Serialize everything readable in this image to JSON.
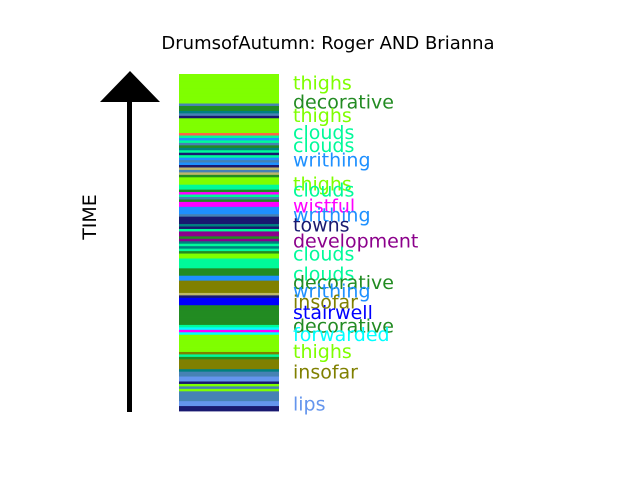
{
  "chart_data": {
    "type": "bar",
    "title": "DrumsofAutumn: Roger AND Brianna",
    "ylabel": "TIME",
    "colors": {
      "lime": "#7fff00",
      "steel": "#4682b4",
      "forest": "#228b22",
      "teal": "#008080",
      "navy": "#191970",
      "spring": "#00fa9a",
      "tomato": "#ff6347",
      "dodger": "#1e90ff",
      "magenta": "#ff00ff",
      "purple": "#8b008b",
      "olive": "#808000",
      "blue": "#0000ff",
      "cyan": "#00ffff",
      "khaki": "#bdb76b",
      "cornflower": "#6495ed"
    },
    "stripes": [
      "lime",
      "lime",
      "lime",
      "lime",
      "lime",
      "lime",
      "lime",
      "lime",
      "lime",
      "lime",
      "lime",
      "lime",
      "steel",
      "forest",
      "forest",
      "teal",
      "steel",
      "navy",
      "lime",
      "lime",
      "lime",
      "lime",
      "lime",
      "lime",
      "tomato",
      "spring",
      "dodger",
      "spring",
      "steel",
      "forest",
      "teal",
      "spring",
      "navy",
      "spring",
      "dodger",
      "steel",
      "dodger",
      "navy",
      "khaki",
      "steel",
      "khaki",
      "forest",
      "lime",
      "lime",
      "lime",
      "spring",
      "spring",
      "forest",
      "magenta",
      "spring",
      "steel",
      "forest",
      "magenta",
      "magenta",
      "dodger",
      "dodger",
      "dodger",
      "steel",
      "navy",
      "navy",
      "navy",
      "teal",
      "navy",
      "spring",
      "purple",
      "purple",
      "forest",
      "purple",
      "teal",
      "spring",
      "teal",
      "spring",
      "forest",
      "lime",
      "lime",
      "spring",
      "spring",
      "spring",
      "spring",
      "forest",
      "forest",
      "forest",
      "dodger",
      "dodger",
      "olive",
      "olive",
      "olive",
      "olive",
      "olive",
      "khaki",
      "navy",
      "blue",
      "blue",
      "blue",
      "forest",
      "forest",
      "forest",
      "forest",
      "forest",
      "forest",
      "forest",
      "forest",
      "spring",
      "cyan",
      "magenta",
      "cyan",
      "lime",
      "lime",
      "lime",
      "lime",
      "lime",
      "lime",
      "lime",
      "olive",
      "spring",
      "forest",
      "olive",
      "olive",
      "olive",
      "olive",
      "teal",
      "steel",
      "steel",
      "cornflower",
      "cornflower",
      "navy",
      "lime",
      "steel",
      "lime",
      "steel",
      "steel",
      "steel",
      "steel",
      "cornflower",
      "cornflower",
      "navy",
      "navy"
    ],
    "labels": [
      {
        "text": "thighs",
        "color": "#7fff00",
        "pos": 0.025
      },
      {
        "text": "decorative",
        "color": "#228b22",
        "pos": 0.081
      },
      {
        "text": "thighs",
        "color": "#7fff00",
        "pos": 0.122
      },
      {
        "text": "clouds",
        "color": "#00fa9a",
        "pos": 0.172
      },
      {
        "text": "clouds",
        "color": "#00fa9a",
        "pos": 0.211
      },
      {
        "text": "writhing",
        "color": "#1e90ff",
        "pos": 0.253
      },
      {
        "text": "thighs",
        "color": "#7fff00",
        "pos": 0.325
      },
      {
        "text": "clouds",
        "color": "#00fa9a",
        "pos": 0.342
      },
      {
        "text": "wistful",
        "color": "#ff00ff",
        "pos": 0.39
      },
      {
        "text": "writhing",
        "color": "#1e90ff",
        "pos": 0.417
      },
      {
        "text": "towns",
        "color": "#191970",
        "pos": 0.447
      },
      {
        "text": "development",
        "color": "#8b008b",
        "pos": 0.494
      },
      {
        "text": "clouds",
        "color": "#00fa9a",
        "pos": 0.533
      },
      {
        "text": "clouds",
        "color": "#00fa9a",
        "pos": 0.592
      },
      {
        "text": "decorative",
        "color": "#228b22",
        "pos": 0.617
      },
      {
        "text": "writhing",
        "color": "#1e90ff",
        "pos": 0.642
      },
      {
        "text": "insofar",
        "color": "#808000",
        "pos": 0.675
      },
      {
        "text": "stairwell",
        "color": "#0000ff",
        "pos": 0.706
      },
      {
        "text": "decorative",
        "color": "#228b22",
        "pos": 0.747
      },
      {
        "text": "forwarded",
        "color": "#00ffff",
        "pos": 0.772
      },
      {
        "text": "thighs",
        "color": "#7fff00",
        "pos": 0.822
      },
      {
        "text": "insofar",
        "color": "#808000",
        "pos": 0.883
      },
      {
        "text": "lips",
        "color": "#6495ed",
        "pos": 0.978
      }
    ]
  }
}
